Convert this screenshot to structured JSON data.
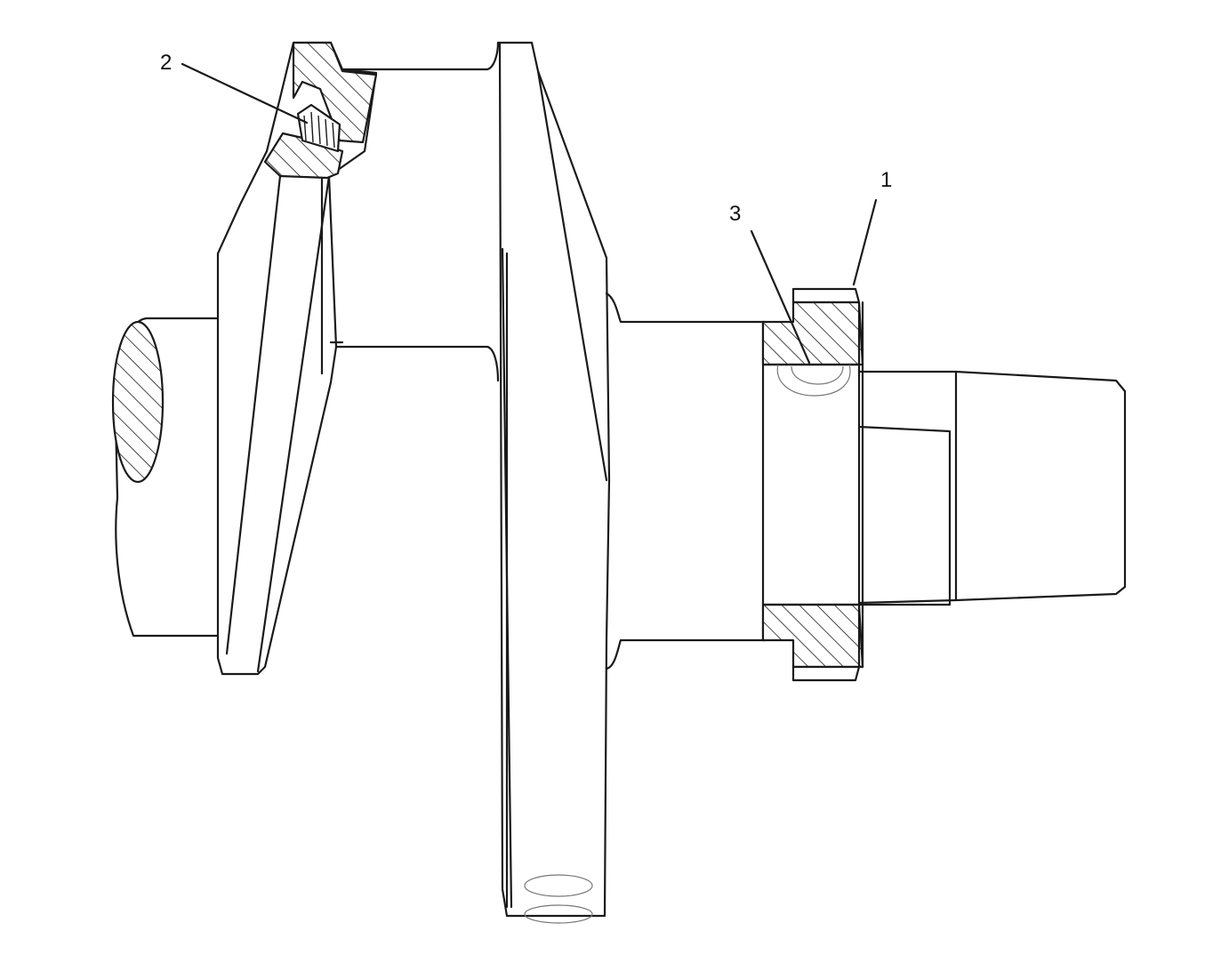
{
  "callouts": [
    {
      "id": "1",
      "label": "1"
    },
    {
      "id": "2",
      "label": "2"
    },
    {
      "id": "3",
      "label": "3"
    }
  ],
  "colors": {
    "line": "#1a1a1a",
    "background": "#ffffff"
  }
}
